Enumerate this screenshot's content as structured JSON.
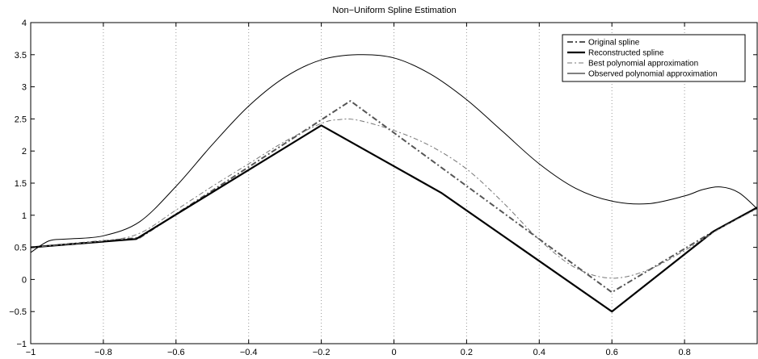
{
  "chart_data": {
    "type": "line",
    "title": "Non−Uniform Spline Estimation",
    "xlabel": "",
    "ylabel": "",
    "xlim": [
      -1,
      1
    ],
    "ylim": [
      -1,
      4
    ],
    "x_ticks": [
      -1,
      -0.8,
      -0.6,
      -0.4,
      -0.2,
      0,
      0.2,
      0.4,
      0.6,
      0.8
    ],
    "x_tick_labels": [
      "−1",
      "−0.8",
      "−0.6",
      "−0.4",
      "−0.2",
      "0",
      "0.2",
      "0.4",
      "0.6",
      "0.8"
    ],
    "y_ticks": [
      -1,
      -0.5,
      0,
      0.5,
      1,
      1.5,
      2,
      2.5,
      3,
      3.5,
      4
    ],
    "y_tick_labels": [
      "−1",
      "−0.5",
      "0",
      "0.5",
      "1",
      "1.5",
      "2",
      "2.5",
      "3",
      "3.5",
      "4"
    ],
    "vertical_grid": true,
    "horizontal_grid": false,
    "legend_position": "top-right",
    "series": [
      {
        "name": "Original spline",
        "style": "dashdot-bold",
        "color": "#555555",
        "x": [
          -1,
          -0.7,
          -0.12,
          0.6,
          0.88,
          1
        ],
        "y": [
          0.5,
          0.65,
          2.78,
          -0.2,
          0.75,
          1.12
        ]
      },
      {
        "name": "Reconstructed spline",
        "style": "solid-bold",
        "color": "#000000",
        "x": [
          -1,
          -0.71,
          -0.2,
          0.13,
          0.6,
          0.88,
          1
        ],
        "y": [
          0.5,
          0.63,
          2.4,
          1.35,
          -0.5,
          0.75,
          1.12
        ]
      },
      {
        "name": "Best polynomial approximation",
        "style": "dashdot-thin",
        "color": "#777777",
        "x": [
          -1,
          -0.8,
          -0.7,
          -0.6,
          -0.5,
          -0.4,
          -0.3,
          -0.2,
          -0.15,
          -0.1,
          0,
          0.1,
          0.2,
          0.3,
          0.4,
          0.5,
          0.6,
          0.7,
          0.8,
          0.9,
          1
        ],
        "y": [
          0.5,
          0.6,
          0.72,
          1.08,
          1.45,
          1.8,
          2.15,
          2.43,
          2.49,
          2.48,
          2.32,
          2.08,
          1.72,
          1.2,
          0.62,
          0.18,
          0.02,
          0.15,
          0.45,
          0.8,
          1.1
        ]
      },
      {
        "name": "Observed polynomial approximation",
        "style": "solid-thin",
        "color": "#000000",
        "x": [
          -1,
          -0.95,
          -0.9,
          -0.8,
          -0.7,
          -0.6,
          -0.5,
          -0.4,
          -0.3,
          -0.2,
          -0.1,
          0,
          0.1,
          0.2,
          0.3,
          0.4,
          0.5,
          0.6,
          0.7,
          0.8,
          0.85,
          0.9,
          0.95,
          1
        ],
        "y": [
          0.42,
          0.6,
          0.63,
          0.68,
          0.9,
          1.45,
          2.1,
          2.7,
          3.15,
          3.42,
          3.5,
          3.45,
          3.2,
          2.8,
          2.3,
          1.8,
          1.42,
          1.22,
          1.18,
          1.3,
          1.4,
          1.44,
          1.35,
          1.1
        ]
      }
    ]
  }
}
